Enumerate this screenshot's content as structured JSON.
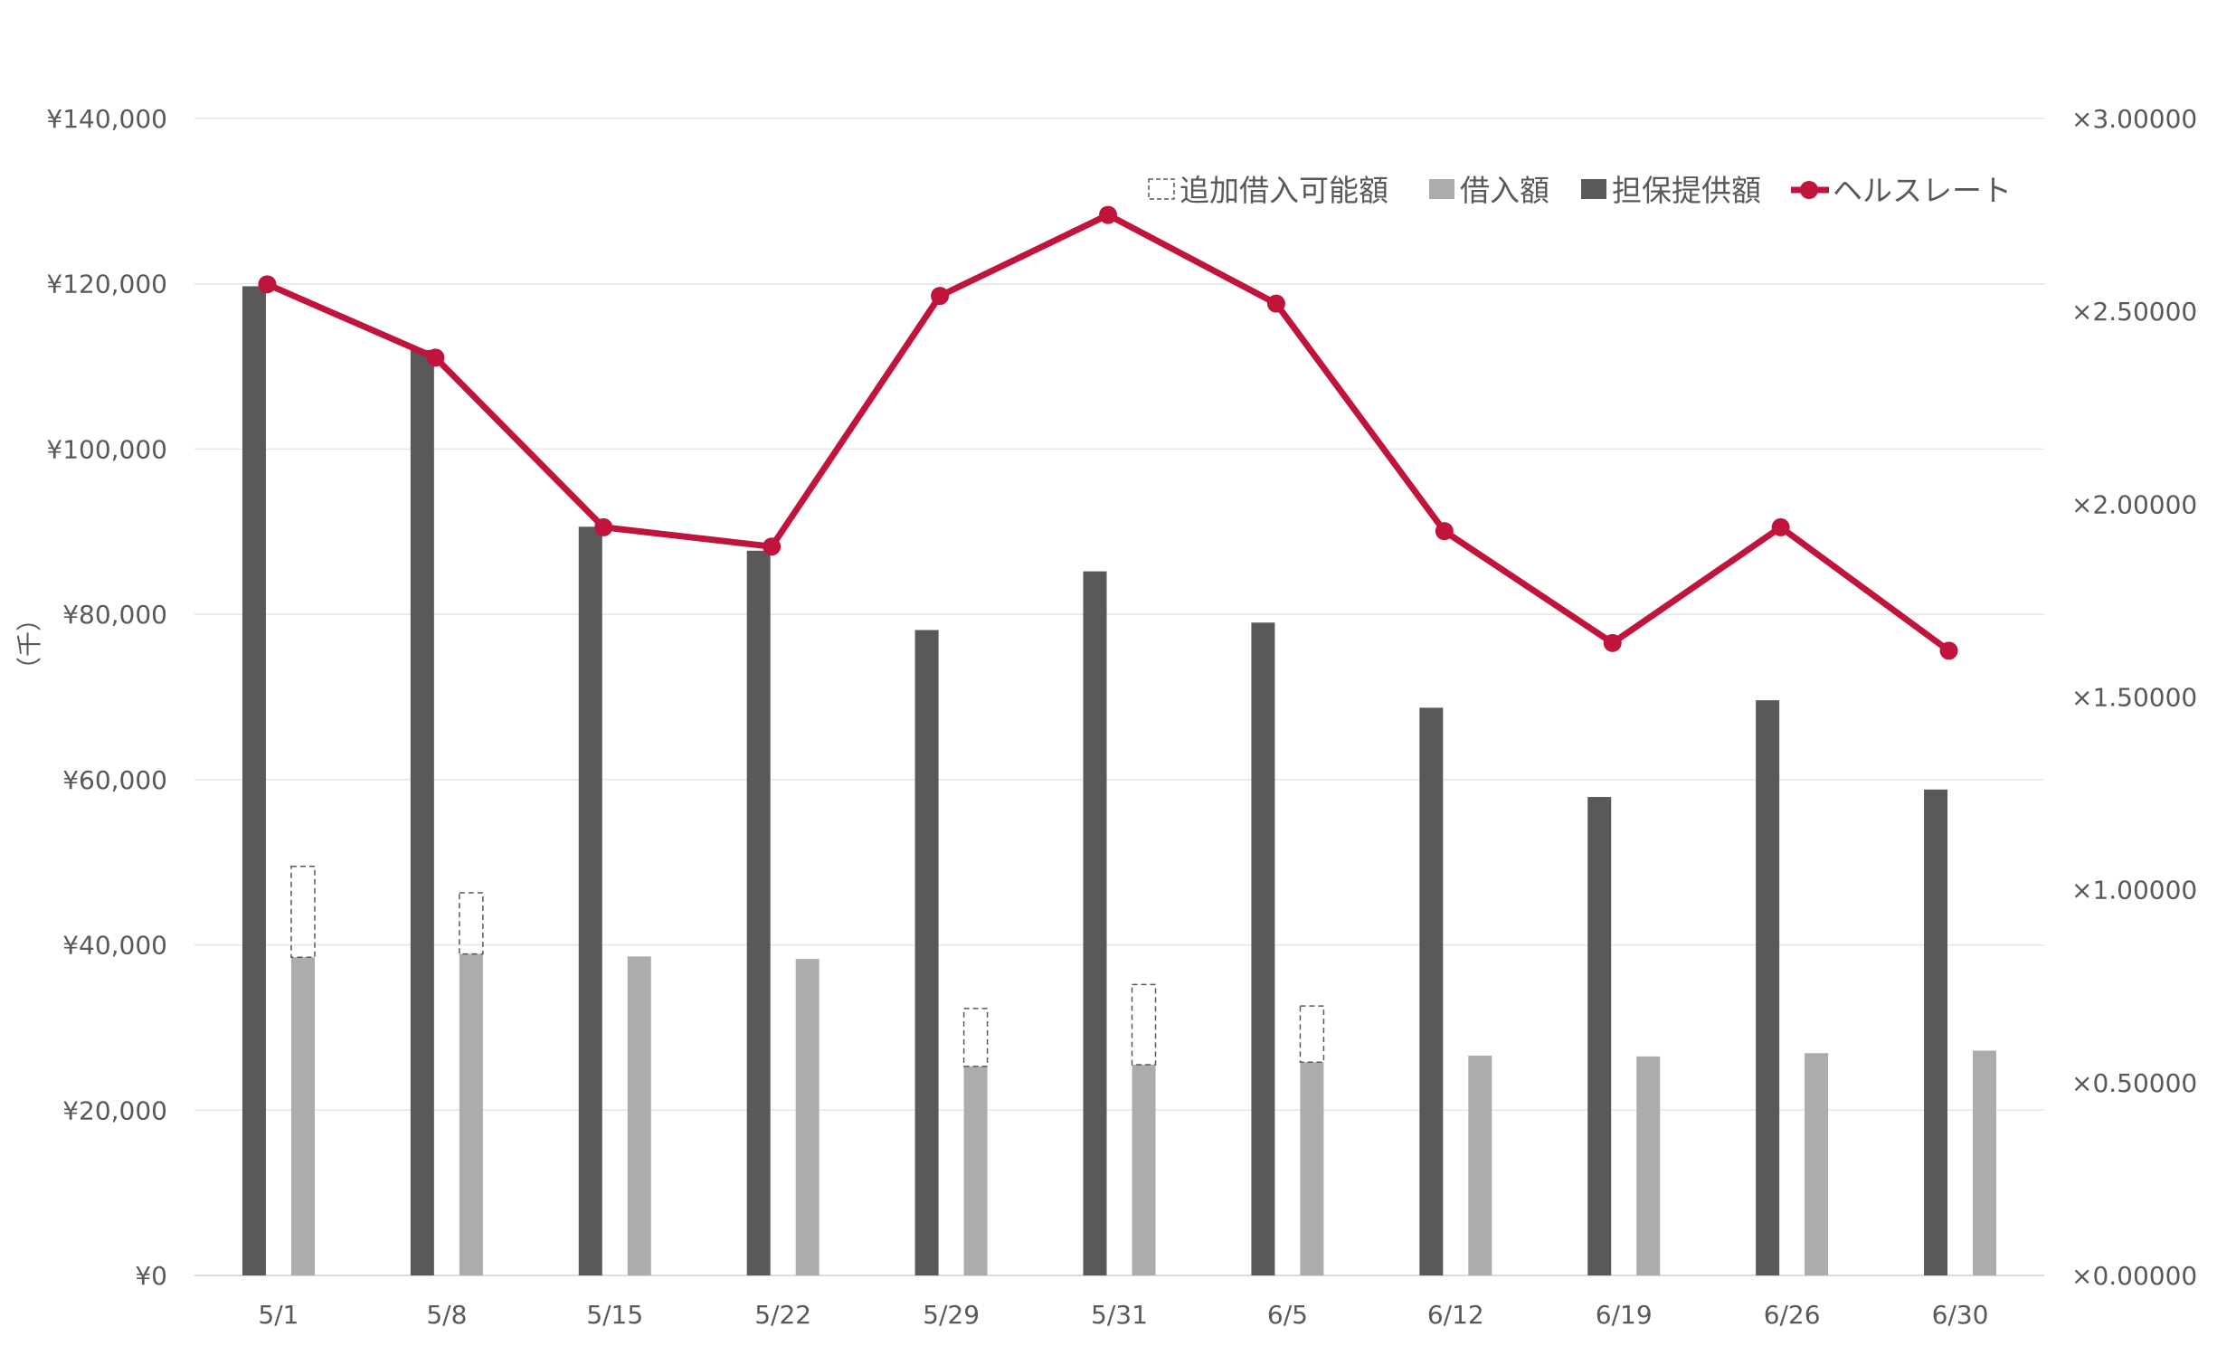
{
  "chart_data": {
    "type": "bar",
    "categories": [
      "5/1",
      "5/8",
      "5/15",
      "5/22",
      "5/29",
      "5/31",
      "6/5",
      "6/12",
      "6/19",
      "6/26",
      "6/30"
    ],
    "series": [
      {
        "name": "担保提供額",
        "kind": "bar",
        "axis": "left",
        "color": "#595959",
        "values": [
          119700,
          112000,
          90600,
          87700,
          78100,
          85200,
          79000,
          68700,
          57900,
          69600,
          58800
        ]
      },
      {
        "name": "借入額",
        "kind": "bar",
        "axis": "left",
        "color": "#aeabab",
        "values": [
          38500,
          38900,
          38600,
          38300,
          25300,
          25500,
          25800,
          26600,
          26500,
          26900,
          27200
        ]
      },
      {
        "name": "追加借入可能額",
        "kind": "bar-dashed-stacked",
        "axis": "left",
        "color": "#595959",
        "values": [
          11000,
          7400,
          0,
          0,
          7000,
          9700,
          6800,
          0,
          0,
          0,
          0
        ]
      },
      {
        "name": "ヘルスレート",
        "kind": "line",
        "axis": "right",
        "color": "#c0143c",
        "values": [
          2.57,
          2.38,
          1.94,
          1.89,
          2.54,
          2.75,
          2.52,
          1.93,
          1.64,
          1.94,
          1.62
        ]
      }
    ],
    "left_axis": {
      "label": "（千）",
      "ylim": [
        0,
        140000
      ],
      "ticks": [
        0,
        20000,
        40000,
        60000,
        80000,
        100000,
        120000,
        140000
      ],
      "tick_labels": [
        "¥0",
        "¥20,000",
        "¥40,000",
        "¥60,000",
        "¥80,000",
        "¥100,000",
        "¥120,000",
        "¥140,000"
      ]
    },
    "right_axis": {
      "ylim": [
        0,
        3
      ],
      "ticks": [
        0,
        0.5,
        1,
        1.5,
        2,
        2.5,
        3
      ],
      "tick_labels": [
        "×0.00000",
        "×0.50000",
        "×1.00000",
        "×1.50000",
        "×2.00000",
        "×2.50000",
        "×3.00000"
      ]
    },
    "legend": {
      "position": "top-right",
      "order": [
        "追加借入可能額",
        "借入額",
        "担保提供額",
        "ヘルスレート"
      ]
    },
    "grid": true,
    "gridColor": "#e6e6e6",
    "textColor": "#595959"
  }
}
